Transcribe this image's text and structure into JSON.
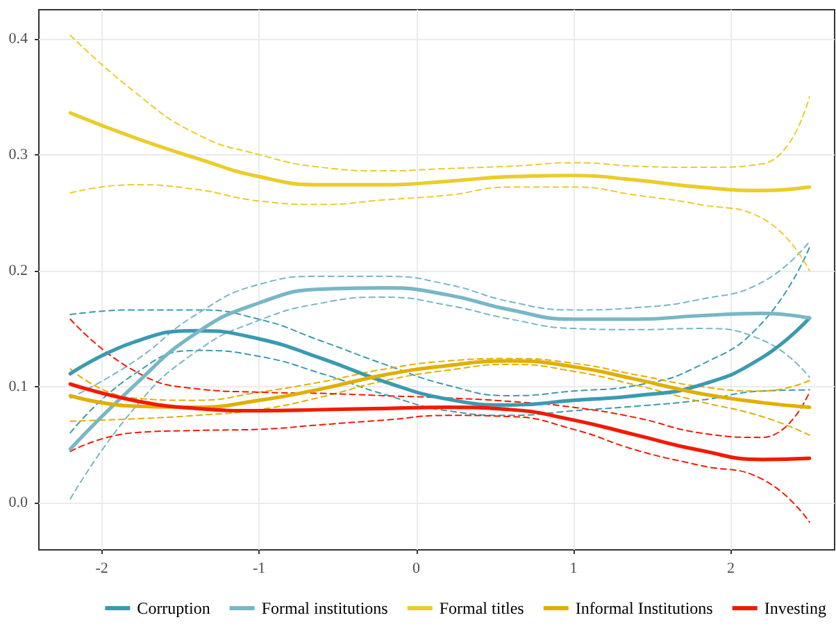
{
  "chart_data": {
    "type": "line",
    "x": [
      -2.2,
      -1.8,
      -1.4,
      -1,
      -0.6,
      -0.2,
      0.2,
      0.6,
      1,
      1.4,
      1.8,
      2.2,
      2.5
    ],
    "xlim": [
      -2.4,
      2.66
    ],
    "ylim": [
      -0.041,
      0.425
    ],
    "xticks": [
      -2,
      -1,
      0,
      1,
      2
    ],
    "yticks": [
      {
        "value": 0,
        "label": "0.0"
      },
      {
        "value": 0.1,
        "label": "0.1"
      },
      {
        "value": 0.2,
        "label": "0.2"
      },
      {
        "value": 0.3,
        "label": "0.3"
      },
      {
        "value": 0.4,
        "label": "0.4"
      }
    ],
    "grid": true,
    "legend": "bottom",
    "marker": "none",
    "line_style": "solid",
    "series": [
      {
        "name": "Corruption",
        "color": "#3a9ab2",
        "values": [
          0.111,
          0.138,
          0.148,
          0.141,
          0.124,
          0.104,
          0.089,
          0.084,
          0.088,
          0.092,
          0.101,
          0.125,
          0.159
        ]
      },
      {
        "color": "#3a9ab2",
        "line_style": "dashed",
        "values": [
          0.162,
          0.166,
          0.166,
          0.158,
          0.139,
          0.119,
          0.101,
          0.092,
          0.096,
          0.101,
          0.118,
          0.155,
          0.22
        ]
      },
      {
        "color": "#3a9ab2",
        "line_style": "dashed",
        "values": [
          0.06,
          0.11,
          0.131,
          0.126,
          0.111,
          0.093,
          0.079,
          0.075,
          0.079,
          0.083,
          0.088,
          0.096,
          0.097
        ]
      },
      {
        "name": "Formal institutions",
        "color": "#78b7c5",
        "values": [
          0.046,
          0.1,
          0.146,
          0.172,
          0.184,
          0.185,
          0.179,
          0.166,
          0.158,
          0.158,
          0.161,
          0.163,
          0.159
        ]
      },
      {
        "color": "#78b7c5",
        "line_style": "dashed",
        "values": [
          0.09,
          0.121,
          0.162,
          0.188,
          0.195,
          0.195,
          0.188,
          0.173,
          0.166,
          0.168,
          0.175,
          0.19,
          0.225
        ]
      },
      {
        "color": "#78b7c5",
        "line_style": "dashed",
        "values": [
          0.003,
          0.08,
          0.13,
          0.157,
          0.172,
          0.177,
          0.17,
          0.158,
          0.15,
          0.149,
          0.15,
          0.14,
          0.108
        ]
      },
      {
        "name": "Formal titles",
        "color": "#ebcc2a",
        "values": [
          0.336,
          0.315,
          0.297,
          0.281,
          0.274,
          0.274,
          0.277,
          0.281,
          0.282,
          0.278,
          0.272,
          0.269,
          0.272
        ]
      },
      {
        "color": "#ebcc2a",
        "line_style": "dashed",
        "values": [
          0.403,
          0.355,
          0.318,
          0.3,
          0.289,
          0.286,
          0.288,
          0.29,
          0.293,
          0.29,
          0.289,
          0.292,
          0.35
        ]
      },
      {
        "color": "#ebcc2a",
        "line_style": "dashed",
        "values": [
          0.267,
          0.274,
          0.27,
          0.26,
          0.257,
          0.261,
          0.265,
          0.272,
          0.272,
          0.265,
          0.257,
          0.245,
          0.2
        ]
      },
      {
        "name": "Informal Institutions",
        "color": "#e1af00",
        "values": [
          0.092,
          0.083,
          0.082,
          0.088,
          0.098,
          0.11,
          0.118,
          0.122,
          0.117,
          0.106,
          0.094,
          0.086,
          0.082
        ]
      },
      {
        "color": "#e1af00",
        "line_style": "dashed",
        "values": [
          0.115,
          0.09,
          0.088,
          0.095,
          0.104,
          0.115,
          0.122,
          0.124,
          0.12,
          0.11,
          0.1,
          0.096,
          0.105
        ]
      },
      {
        "color": "#e1af00",
        "line_style": "dashed",
        "values": [
          0.07,
          0.072,
          0.075,
          0.08,
          0.091,
          0.105,
          0.114,
          0.119,
          0.113,
          0.101,
          0.087,
          0.074,
          0.058
        ]
      },
      {
        "name": "Investing",
        "color": "#f21a00",
        "values": [
          0.102,
          0.088,
          0.081,
          0.079,
          0.08,
          0.081,
          0.082,
          0.08,
          0.071,
          0.058,
          0.045,
          0.037,
          0.038
        ]
      },
      {
        "color": "#f21a00",
        "line_style": "dashed",
        "values": [
          0.158,
          0.114,
          0.098,
          0.095,
          0.094,
          0.092,
          0.09,
          0.087,
          0.082,
          0.073,
          0.06,
          0.056,
          0.095
        ]
      },
      {
        "color": "#f21a00",
        "line_style": "dashed",
        "values": [
          0.044,
          0.06,
          0.062,
          0.063,
          0.067,
          0.071,
          0.075,
          0.074,
          0.063,
          0.045,
          0.032,
          0.02,
          -0.017
        ]
      }
    ]
  }
}
